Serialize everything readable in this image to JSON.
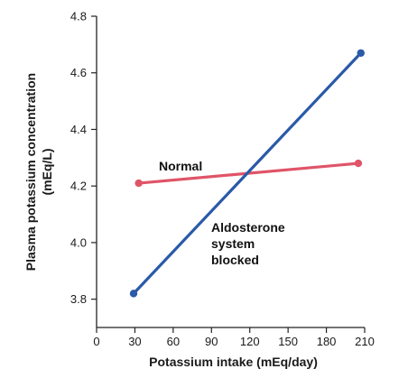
{
  "chart_data": {
    "type": "line",
    "xlabel": "Potassium intake (mEq/day)",
    "ylabel": [
      "Plasma potassium concentration",
      "(mEq/L)"
    ],
    "xlim": [
      0,
      210
    ],
    "ylim": [
      3.7,
      4.8
    ],
    "xticks": [
      0,
      30,
      60,
      90,
      120,
      150,
      180,
      210
    ],
    "yticks": [
      3.8,
      4.0,
      4.2,
      4.4,
      4.6,
      4.8
    ],
    "ytick_labels": [
      "3.8",
      "4.0",
      "4.2",
      "4.4",
      "4.6",
      "4.8"
    ],
    "grid": false,
    "series": [
      {
        "name": "Normal",
        "color": "#e05468",
        "x": [
          33,
          205
        ],
        "y": [
          4.21,
          4.28
        ],
        "label_lines": [
          "Normal"
        ]
      },
      {
        "name": "Aldosterone system blocked",
        "color": "#2a5aa8",
        "x": [
          29,
          207
        ],
        "y": [
          3.82,
          4.67
        ],
        "label_lines": [
          "Aldosterone",
          "system",
          "blocked"
        ]
      }
    ]
  }
}
